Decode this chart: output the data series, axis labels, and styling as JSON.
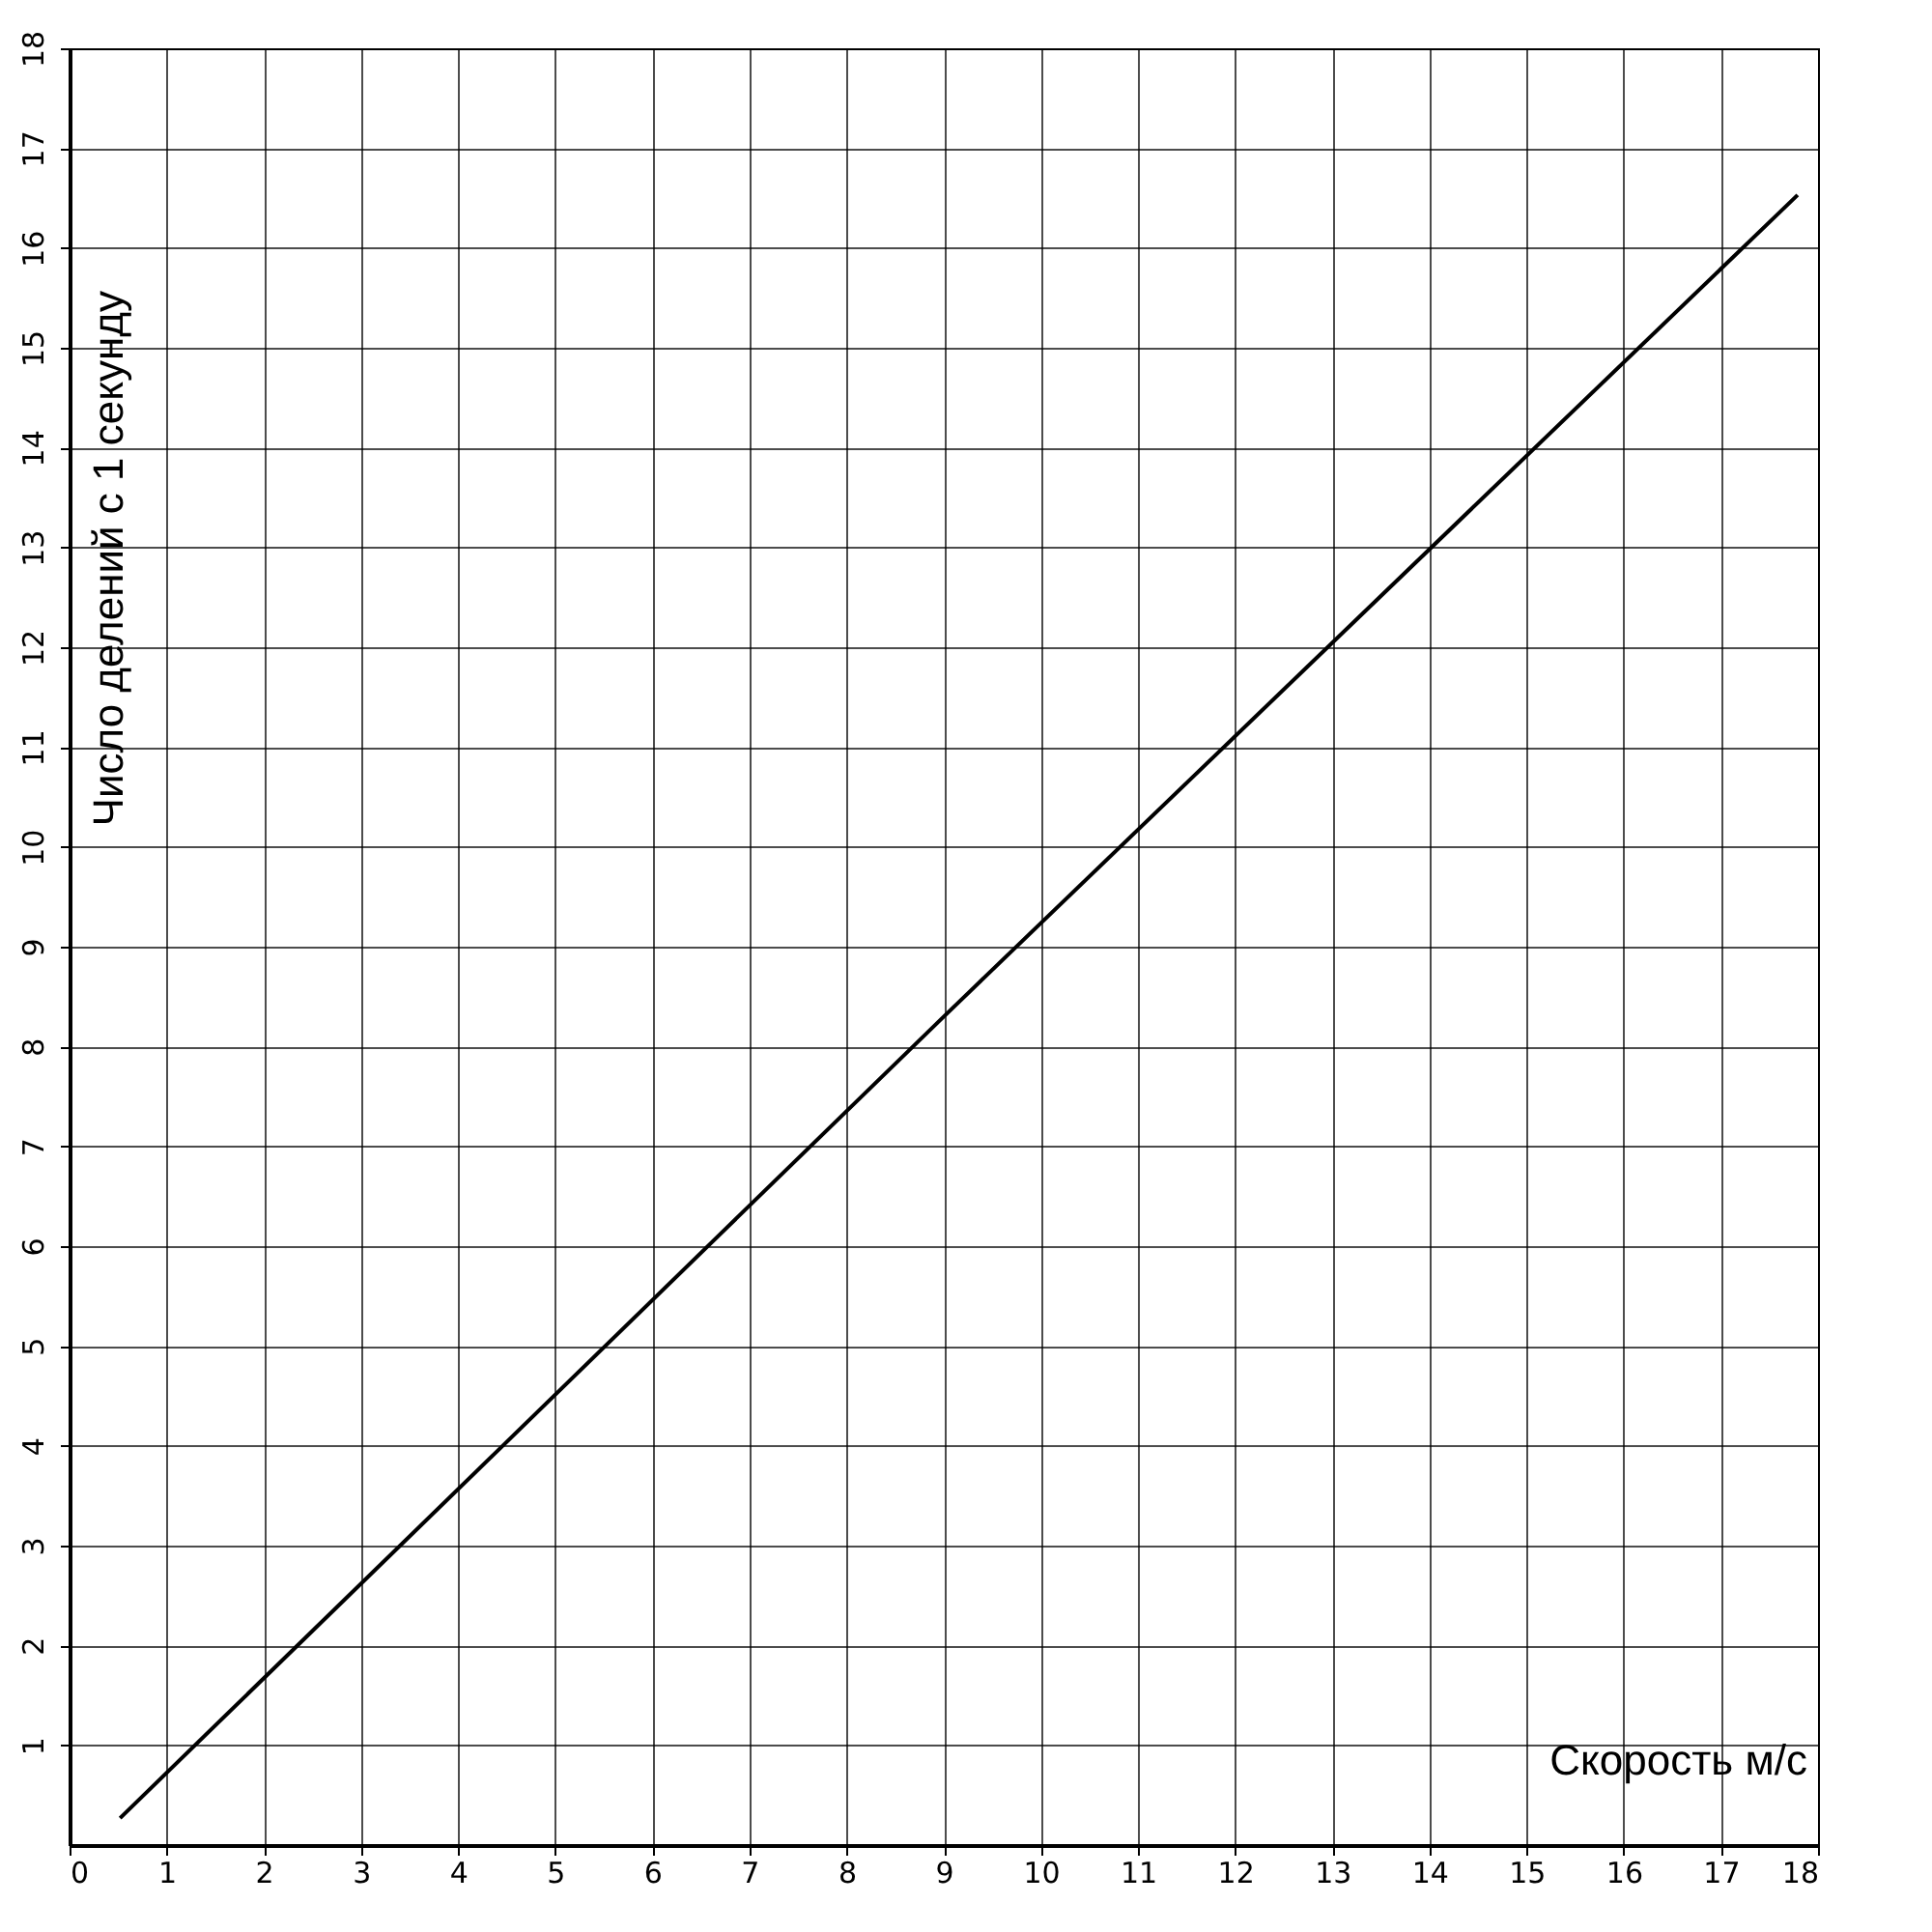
{
  "chart_data": {
    "type": "line",
    "xlabel": "Скорость м/с",
    "ylabel": "Число делений с 1 секунду",
    "x": [
      0.52,
      9,
      17.79
    ],
    "series": [
      {
        "color": "#000000",
        "values": [
          0.27,
          8.3,
          16.53
        ]
      }
    ],
    "xlim": [
      0,
      18
    ],
    "xticks": [
      0,
      1,
      2,
      3,
      4,
      5,
      6,
      7,
      8,
      9,
      10,
      11,
      12,
      13,
      14,
      15,
      16,
      17,
      18
    ],
    "ylim": [
      0,
      18
    ],
    "yticks": [
      1,
      2,
      3,
      4,
      5,
      6,
      7,
      8,
      9,
      10,
      11,
      12,
      13,
      14,
      15,
      16,
      17,
      18
    ],
    "grid": true
  }
}
